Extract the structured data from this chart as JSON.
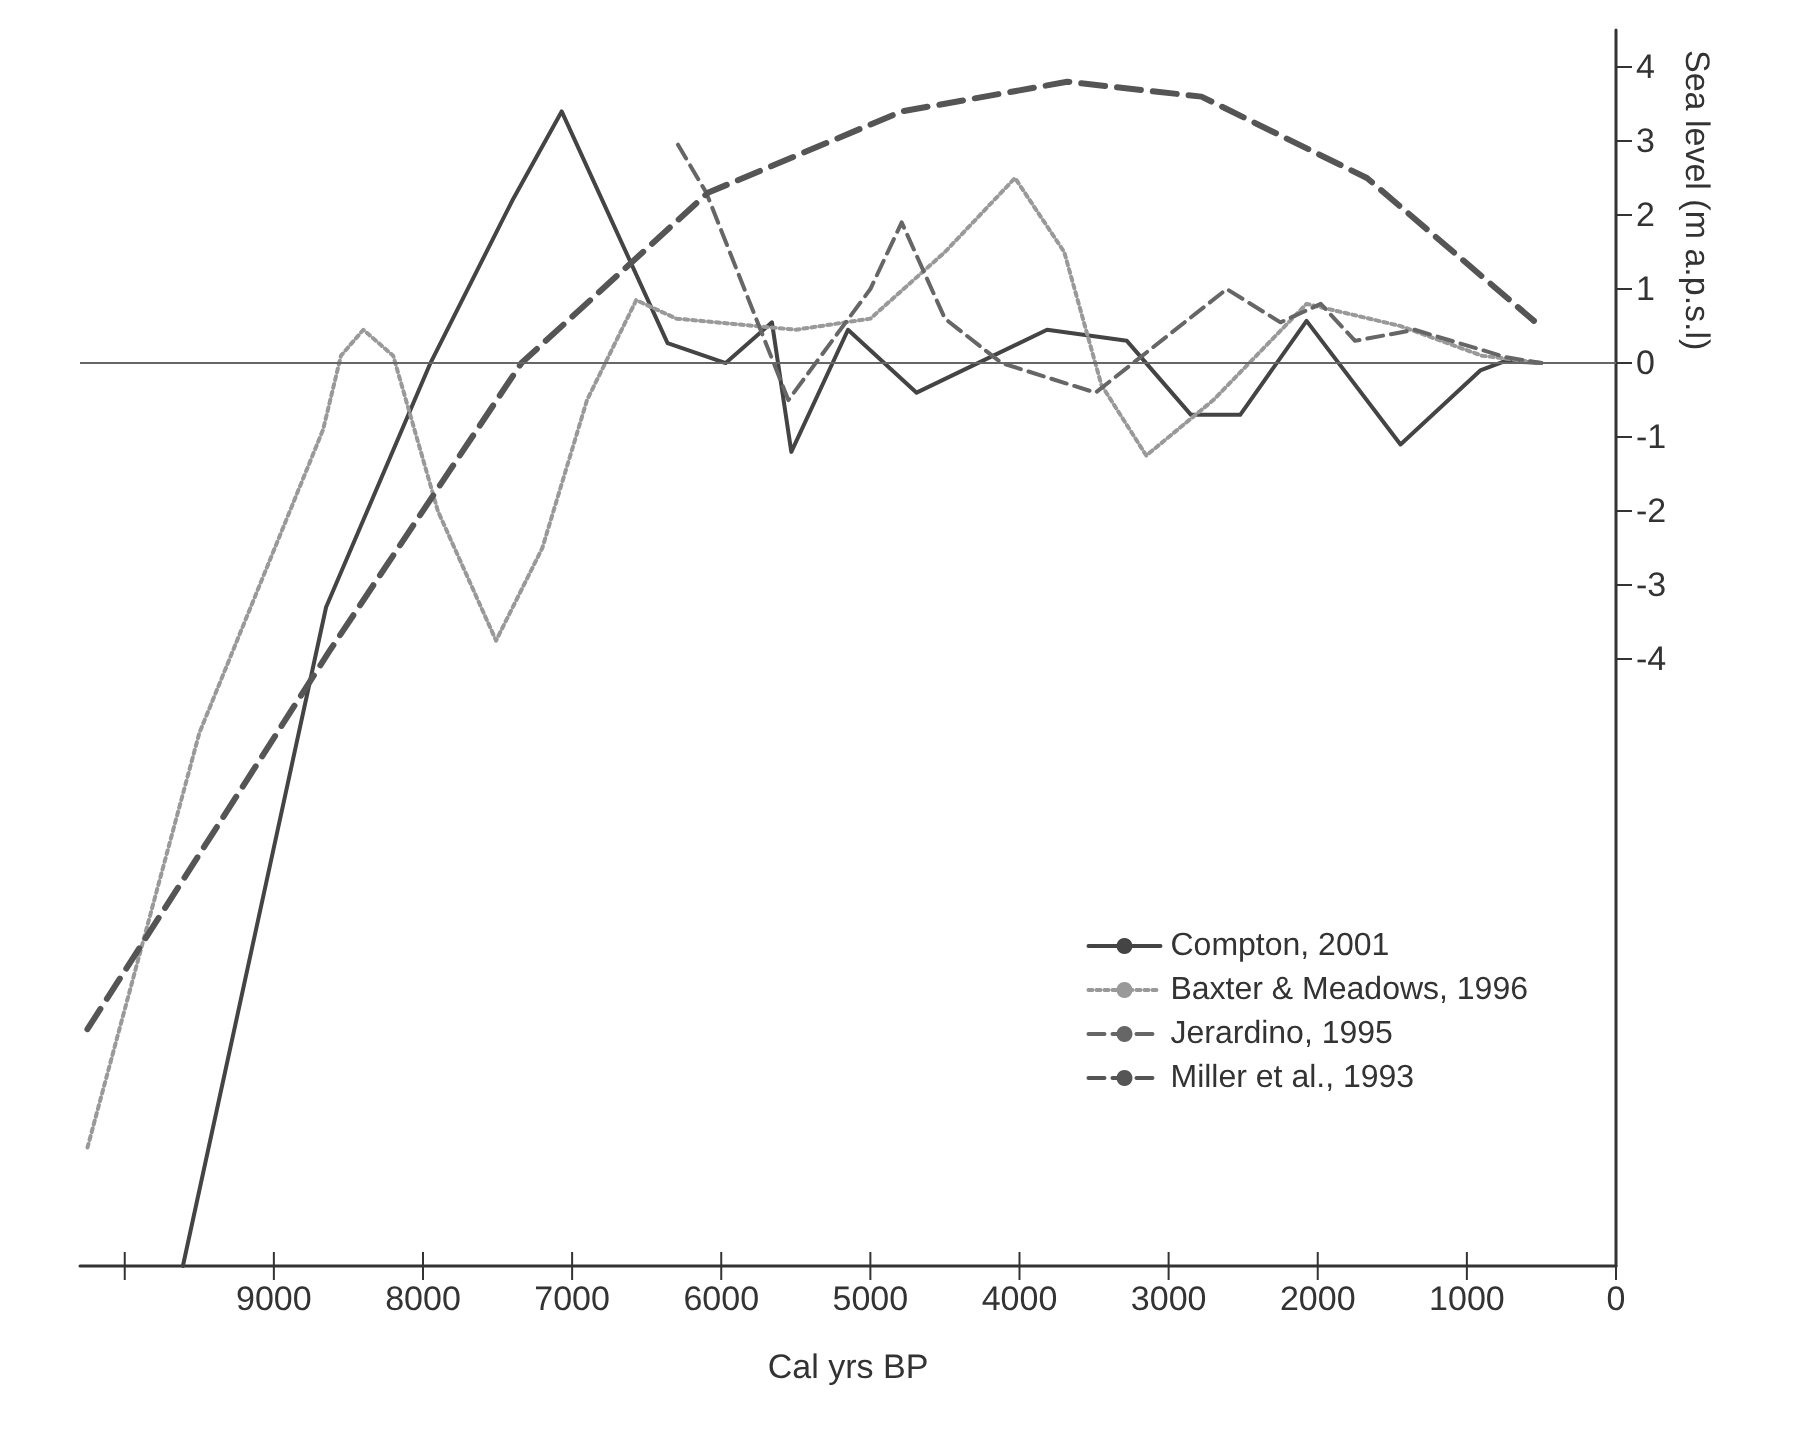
{
  "chart_data": {
    "type": "line",
    "xlabel": "Cal yrs BP",
    "ylabel": "Sea level (m a.p.s.l)",
    "xlim": [
      10300,
      0
    ],
    "xticks": [
      {
        "value": 10000,
        "label": null
      },
      9000,
      8000,
      7000,
      6000,
      5000,
      4000,
      3000,
      2000,
      1000,
      0
    ],
    "ylim": [
      -12.2,
      4.5
    ],
    "yticks": [
      -4,
      -3,
      -2,
      -1,
      0,
      1,
      2,
      3,
      4
    ],
    "grid": false,
    "legend": "right",
    "marker": "none",
    "ref_lines": [
      {
        "axis": "y",
        "value": 0,
        "color": "#666666",
        "line_style": "solid"
      }
    ],
    "series": [
      {
        "name": "Compton, 2001",
        "color": "#444444",
        "line_style": "solid",
        "x": [
          9610,
          8650,
          7950,
          7400,
          7070,
          6360,
          5970,
          5660,
          5530,
          5150,
          4690,
          3815,
          3280,
          2850,
          2520,
          2075,
          1445,
          910,
          740,
          510
        ],
        "values": [
          -12.2,
          -3.3,
          0,
          2.2,
          3.4,
          0.27,
          0,
          0.55,
          -1.2,
          0.45,
          -0.4,
          0.45,
          0.3,
          -0.7,
          -0.7,
          0.57,
          -1.1,
          -0.1,
          0.03,
          0
        ]
      },
      {
        "name": "Baxter & Meadows, 1996",
        "color": "#999999",
        "line_style": "dotted",
        "x": [
          10250,
          9500,
          8670,
          8550,
          8400,
          8200,
          7900,
          7510,
          7200,
          6900,
          6570,
          6300,
          5500,
          5000,
          4500,
          4030,
          3700,
          3450,
          3150,
          2700,
          2075,
          1445,
          900,
          500
        ],
        "values": [
          -10.6,
          -5,
          -0.9,
          0.1,
          0.45,
          0.1,
          -2,
          -3.75,
          -2.5,
          -0.5,
          0.85,
          0.6,
          0.45,
          0.6,
          1.5,
          2.5,
          1.5,
          -0.3,
          -1.25,
          -0.5,
          0.8,
          0.5,
          0.1,
          0
        ]
      },
      {
        "name": "Jerardino, 1995",
        "color": "#666666",
        "line_style": "dashed",
        "x": [
          6290,
          6100,
          5550,
          5000,
          4790,
          4500,
          4120,
          3490,
          2610,
          2250,
          1980,
          1750,
          1350,
          740,
          500
        ],
        "values": [
          2.95,
          2.3,
          -0.5,
          1,
          1.9,
          0.6,
          0,
          -0.4,
          1,
          0.55,
          0.8,
          0.3,
          0.45,
          0.08,
          0
        ]
      },
      {
        "name": "Miller et al., 1993",
        "color": "#555555",
        "line_style": "dashed",
        "x": [
          10250,
          8630,
          7340,
          6090,
          4790,
          3680,
          2780,
          1670,
          550
        ],
        "values": [
          -9,
          -3.9,
          0,
          2.3,
          3.4,
          3.8,
          3.6,
          2.5,
          0.57
        ]
      }
    ]
  }
}
